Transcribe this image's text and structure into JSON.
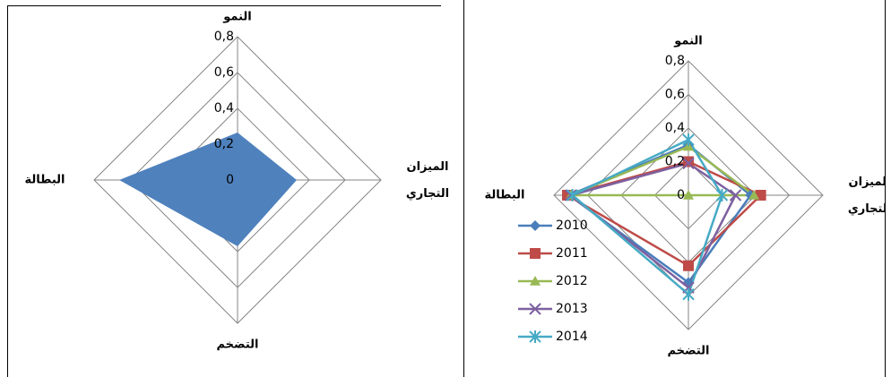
{
  "chart_data": [
    {
      "type": "radar",
      "categories": [
        "النمو",
        "الميزان التجاري",
        "التضخم",
        "البطالة"
      ],
      "values": [
        0.265,
        0.33,
        0.37,
        0.66
      ],
      "color": "#4f81bd",
      "ylim": [
        0,
        0.8
      ],
      "yticks": [
        0,
        {
          "value": 0.2,
          "label": "0,2"
        },
        {
          "value": 0.4,
          "label": "0,4"
        },
        {
          "value": 0.6,
          "label": "0,6"
        },
        {
          "value": 0.8,
          "label": "0,8"
        }
      ],
      "grid": true
    },
    {
      "type": "radar",
      "categories": [
        "النمو",
        "الميزان التجاري",
        "التضخم",
        "البطالة"
      ],
      "series": [
        {
          "name": "2010",
          "color": "#4a7ebb",
          "marker": "diamond",
          "values": [
            0.3,
            0.37,
            0.52,
            0.71
          ]
        },
        {
          "name": "2011",
          "color": "#be4b48",
          "marker": "square",
          "values": [
            0.2,
            0.43,
            0.42,
            0.72
          ]
        },
        {
          "name": "2012",
          "color": "#98b954",
          "marker": "triangle",
          "values": [
            0.29,
            0.39,
            0,
            0.7
          ]
        },
        {
          "name": "2013",
          "color": "#7d60a0",
          "marker": "x",
          "values": [
            0.19,
            0.28,
            0.55,
            0.7
          ]
        },
        {
          "name": "2014",
          "color": "#46aac5",
          "marker": "star",
          "values": [
            0.33,
            0.2,
            0.59,
            0.69
          ]
        }
      ],
      "ylim": [
        0,
        0.8
      ],
      "yticks": [
        0,
        {
          "value": 0.2,
          "label": "0,2"
        },
        {
          "value": 0.4,
          "label": "0,4"
        },
        {
          "value": 0.6,
          "label": "0,6"
        },
        {
          "value": 0.8,
          "label": "0,8"
        }
      ],
      "grid": true,
      "legend": "left"
    }
  ]
}
